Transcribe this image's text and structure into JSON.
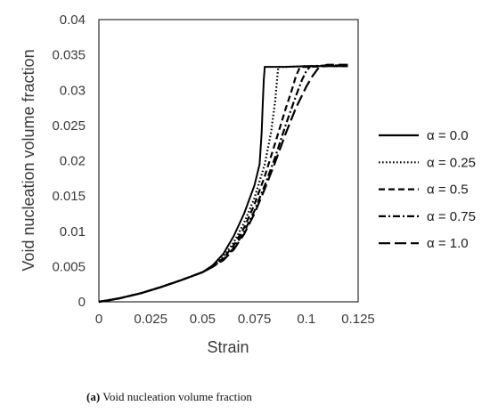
{
  "caption": {
    "tag": "(a)",
    "text": "Void nucleation volume fraction"
  },
  "chart_data": {
    "type": "line",
    "xlabel": "Strain",
    "ylabel": "Void nucleation volume fraction",
    "xlim": [
      0,
      0.125
    ],
    "ylim": [
      0,
      0.04
    ],
    "xticks": [
      "0",
      "0.025",
      "0.05",
      "0.075",
      "0.1",
      "0.125"
    ],
    "yticks": [
      "0",
      "0.005",
      "0.01",
      "0.015",
      "0.02",
      "0.025",
      "0.03",
      "0.035",
      "0.04"
    ],
    "grid": false,
    "legend_position": "right",
    "series": [
      {
        "name": "α = 0.0",
        "dash": "solid",
        "x": [
          0,
          0.005,
          0.01,
          0.02,
          0.03,
          0.04,
          0.05,
          0.055,
          0.06,
          0.065,
          0.07,
          0.075,
          0.0775,
          0.0785,
          0.079,
          0.0795,
          0.08,
          0.085,
          0.09,
          0.1,
          0.11,
          0.12
        ],
        "y": [
          0,
          0.0002,
          0.0005,
          0.0012,
          0.0021,
          0.0031,
          0.0042,
          0.0052,
          0.0068,
          0.0093,
          0.0125,
          0.0165,
          0.0195,
          0.024,
          0.028,
          0.0315,
          0.0333,
          0.0333,
          0.0333,
          0.0334,
          0.0334,
          0.0334
        ]
      },
      {
        "name": "α = 0.25",
        "dash": "dotted",
        "x": [
          0,
          0.01,
          0.02,
          0.03,
          0.04,
          0.05,
          0.055,
          0.06,
          0.065,
          0.07,
          0.075,
          0.08,
          0.083,
          0.085,
          0.086,
          0.0865,
          0.09,
          0.1,
          0.11,
          0.12
        ],
        "y": [
          0,
          0.0005,
          0.0012,
          0.0021,
          0.0031,
          0.0042,
          0.0051,
          0.0064,
          0.0084,
          0.0112,
          0.0147,
          0.0195,
          0.024,
          0.0285,
          0.0318,
          0.0333,
          0.0333,
          0.0334,
          0.0334,
          0.0334
        ]
      },
      {
        "name": "α = 0.5",
        "dash": "dashed",
        "x": [
          0,
          0.01,
          0.02,
          0.03,
          0.04,
          0.05,
          0.055,
          0.06,
          0.065,
          0.07,
          0.075,
          0.08,
          0.085,
          0.09,
          0.093,
          0.095,
          0.097,
          0.1,
          0.11,
          0.12
        ],
        "y": [
          0,
          0.0005,
          0.0012,
          0.0021,
          0.0031,
          0.0042,
          0.005,
          0.0062,
          0.008,
          0.0105,
          0.0138,
          0.0178,
          0.0225,
          0.0273,
          0.03,
          0.032,
          0.0333,
          0.0333,
          0.0334,
          0.0334
        ]
      },
      {
        "name": "α = 0.75",
        "dash": "dashdot",
        "x": [
          0,
          0.01,
          0.02,
          0.03,
          0.04,
          0.05,
          0.055,
          0.06,
          0.065,
          0.07,
          0.075,
          0.08,
          0.085,
          0.09,
          0.095,
          0.098,
          0.1,
          0.102,
          0.11,
          0.12
        ],
        "y": [
          0,
          0.0005,
          0.0012,
          0.0021,
          0.0031,
          0.0042,
          0.005,
          0.006,
          0.0076,
          0.0099,
          0.0129,
          0.0165,
          0.0205,
          0.025,
          0.0292,
          0.0315,
          0.0327,
          0.0334,
          0.0335,
          0.0335
        ]
      },
      {
        "name": "α = 1.0",
        "dash": "longdash",
        "x": [
          0,
          0.01,
          0.02,
          0.03,
          0.04,
          0.05,
          0.055,
          0.06,
          0.065,
          0.07,
          0.075,
          0.08,
          0.085,
          0.09,
          0.095,
          0.1,
          0.103,
          0.106,
          0.11,
          0.12
        ],
        "y": [
          0,
          0.0005,
          0.0012,
          0.0021,
          0.0031,
          0.0042,
          0.005,
          0.0059,
          0.0074,
          0.0096,
          0.0125,
          0.016,
          0.0198,
          0.0238,
          0.0275,
          0.0305,
          0.032,
          0.0332,
          0.0336,
          0.0336
        ]
      }
    ]
  }
}
